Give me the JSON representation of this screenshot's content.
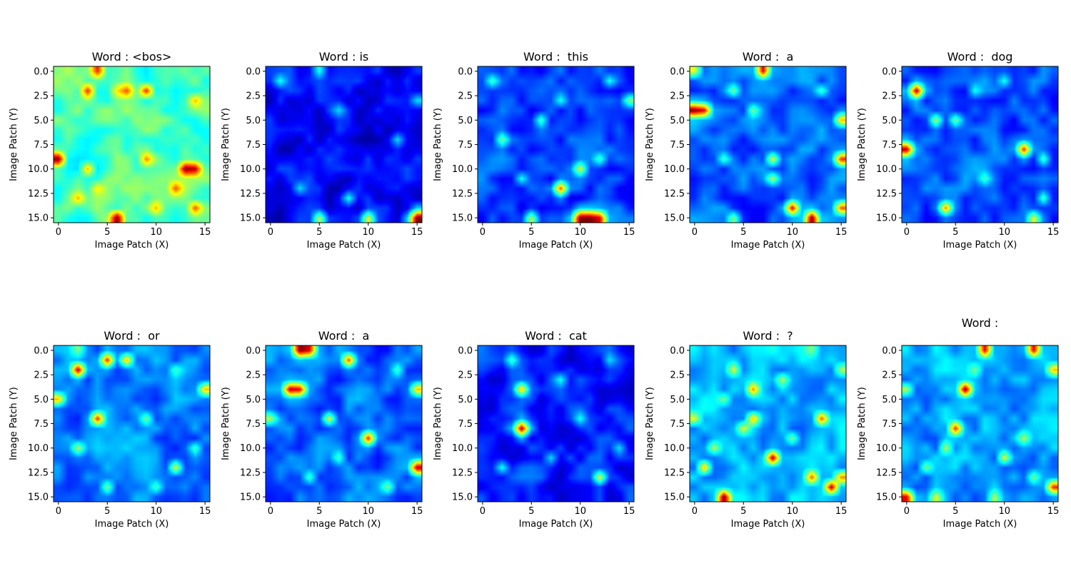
{
  "chart_data": {
    "type": "heatmap",
    "colormap": "jet",
    "grid": false,
    "xlabel": "Image Patch (X)",
    "ylabel": "Image Patch (Y)",
    "xlim": [
      -0.5,
      15.5
    ],
    "ylim": [
      15.5,
      -0.5
    ],
    "xticks": [
      "0",
      "5",
      "10",
      "15"
    ],
    "yticks": [
      "0.0",
      "2.5",
      "5.0",
      "7.5",
      "10.0",
      "12.5",
      "15.0"
    ],
    "panels": [
      {
        "title": "Word : <bos>",
        "hotspots": [
          [
            3,
            2,
            0.85
          ],
          [
            4,
            0,
            0.85
          ],
          [
            6,
            2,
            0.65
          ],
          [
            7,
            2,
            0.8
          ],
          [
            9,
            2,
            0.85
          ],
          [
            0,
            9,
            1.0
          ],
          [
            3,
            10,
            0.7
          ],
          [
            9,
            9,
            0.75
          ],
          [
            13,
            10,
            1.0
          ],
          [
            14,
            10,
            0.95
          ],
          [
            12,
            12,
            0.8
          ],
          [
            6,
            15,
            1.0
          ],
          [
            14,
            14,
            0.8
          ],
          [
            2,
            13,
            0.7
          ],
          [
            10,
            14,
            0.7
          ],
          [
            4,
            12,
            0.65
          ],
          [
            14,
            3,
            0.7
          ]
        ]
      },
      {
        "title": "Word : is",
        "hotspots": [
          [
            15,
            15,
            1.0
          ],
          [
            10,
            15,
            0.6
          ],
          [
            5,
            15,
            0.55
          ],
          [
            1,
            1,
            0.4
          ],
          [
            5,
            0,
            0.4
          ],
          [
            7,
            4,
            0.35
          ],
          [
            13,
            7,
            0.35
          ],
          [
            15,
            3,
            0.35
          ],
          [
            8,
            13,
            0.4
          ],
          [
            3,
            12,
            0.35
          ]
        ]
      },
      {
        "title": "Word :  this",
        "hotspots": [
          [
            10,
            15,
            1.0
          ],
          [
            11,
            15,
            1.0
          ],
          [
            12,
            15,
            0.9
          ],
          [
            8,
            12,
            0.8
          ],
          [
            10,
            10,
            0.6
          ],
          [
            5,
            15,
            0.55
          ],
          [
            2,
            7,
            0.5
          ],
          [
            1,
            1,
            0.45
          ],
          [
            6,
            5,
            0.45
          ],
          [
            12,
            9,
            0.45
          ],
          [
            15,
            3,
            0.5
          ],
          [
            4,
            11,
            0.4
          ],
          [
            8,
            3,
            0.4
          ],
          [
            13,
            1,
            0.4
          ]
        ]
      },
      {
        "title": "Word :  a",
        "hotspots": [
          [
            0,
            4,
            1.0
          ],
          [
            1,
            4,
            0.9
          ],
          [
            7,
            0,
            0.9
          ],
          [
            12,
            15,
            1.0
          ],
          [
            10,
            14,
            0.9
          ],
          [
            15,
            9,
            0.85
          ],
          [
            15,
            14,
            0.8
          ],
          [
            15,
            5,
            0.7
          ],
          [
            8,
            9,
            0.6
          ],
          [
            8,
            11,
            0.55
          ],
          [
            4,
            2,
            0.5
          ],
          [
            0,
            0,
            0.6
          ],
          [
            6,
            4,
            0.5
          ],
          [
            4,
            15,
            0.5
          ],
          [
            13,
            2,
            0.45
          ],
          [
            3,
            9,
            0.45
          ]
        ]
      },
      {
        "title": "Word :  dog",
        "hotspots": [
          [
            1,
            2,
            0.95
          ],
          [
            0,
            8,
            0.95
          ],
          [
            12,
            8,
            0.85
          ],
          [
            4,
            14,
            0.75
          ],
          [
            13,
            15,
            0.6
          ],
          [
            3,
            5,
            0.55
          ],
          [
            5,
            5,
            0.5
          ],
          [
            8,
            11,
            0.45
          ],
          [
            14,
            13,
            0.45
          ],
          [
            10,
            1,
            0.4
          ],
          [
            14,
            9,
            0.45
          ],
          [
            7,
            2,
            0.4
          ]
        ]
      },
      {
        "title": "Word :  or",
        "hotspots": [
          [
            2,
            2,
            0.95
          ],
          [
            5,
            1,
            0.85
          ],
          [
            7,
            1,
            0.7
          ],
          [
            4,
            7,
            0.85
          ],
          [
            0,
            5,
            0.7
          ],
          [
            15,
            4,
            0.7
          ],
          [
            2,
            10,
            0.55
          ],
          [
            12,
            12,
            0.6
          ],
          [
            9,
            7,
            0.5
          ],
          [
            5,
            14,
            0.5
          ],
          [
            14,
            10,
            0.45
          ],
          [
            10,
            14,
            0.45
          ],
          [
            2,
            0,
            0.5
          ],
          [
            12,
            2,
            0.45
          ]
        ]
      },
      {
        "title": "Word :  a",
        "hotspots": [
          [
            3,
            0,
            1.0
          ],
          [
            4,
            0,
            0.9
          ],
          [
            2,
            4,
            0.95
          ],
          [
            3,
            4,
            0.9
          ],
          [
            8,
            1,
            0.8
          ],
          [
            10,
            9,
            0.85
          ],
          [
            15,
            12,
            0.95
          ],
          [
            15,
            4,
            0.7
          ],
          [
            6,
            7,
            0.6
          ],
          [
            0,
            7,
            0.55
          ],
          [
            13,
            2,
            0.45
          ],
          [
            7,
            11,
            0.45
          ],
          [
            12,
            14,
            0.5
          ],
          [
            4,
            13,
            0.45
          ]
        ]
      },
      {
        "title": "Word :  cat",
        "hotspots": [
          [
            4,
            8,
            0.95
          ],
          [
            4,
            4,
            0.7
          ],
          [
            12,
            13,
            0.6
          ],
          [
            3,
            1,
            0.45
          ],
          [
            8,
            3,
            0.4
          ],
          [
            10,
            7,
            0.4
          ],
          [
            2,
            12,
            0.4
          ],
          [
            14,
            10,
            0.35
          ],
          [
            7,
            11,
            0.35
          ],
          [
            13,
            1,
            0.35
          ]
        ]
      },
      {
        "title": "Word :  ?",
        "hotspots": [
          [
            3,
            15,
            1.0
          ],
          [
            8,
            11,
            0.95
          ],
          [
            12,
            13,
            0.8
          ],
          [
            14,
            14,
            0.95
          ],
          [
            15,
            13,
            0.75
          ],
          [
            13,
            7,
            0.8
          ],
          [
            6,
            4,
            0.75
          ],
          [
            6,
            7,
            0.7
          ],
          [
            1,
            12,
            0.7
          ],
          [
            5,
            8,
            0.6
          ],
          [
            4,
            2,
            0.6
          ],
          [
            9,
            3,
            0.55
          ],
          [
            0,
            7,
            0.6
          ],
          [
            2,
            10,
            0.55
          ],
          [
            10,
            9,
            0.5
          ],
          [
            12,
            0,
            0.5
          ],
          [
            15,
            2,
            0.55
          ],
          [
            3,
            5,
            0.5
          ]
        ]
      },
      {
        "title": "Word :",
        "hotspots": [
          [
            6,
            4,
            1.0
          ],
          [
            8,
            0,
            0.9
          ],
          [
            13,
            0,
            0.9
          ],
          [
            5,
            8,
            0.85
          ],
          [
            0,
            15,
            0.9
          ],
          [
            15,
            14,
            0.85
          ],
          [
            15,
            2,
            0.7
          ],
          [
            3,
            15,
            0.6
          ],
          [
            10,
            11,
            0.6
          ],
          [
            4,
            10,
            0.55
          ],
          [
            12,
            9,
            0.55
          ],
          [
            9,
            15,
            0.55
          ],
          [
            7,
            2,
            0.5
          ],
          [
            0,
            4,
            0.55
          ],
          [
            13,
            13,
            0.5
          ],
          [
            2,
            12,
            0.5
          ]
        ]
      }
    ]
  }
}
